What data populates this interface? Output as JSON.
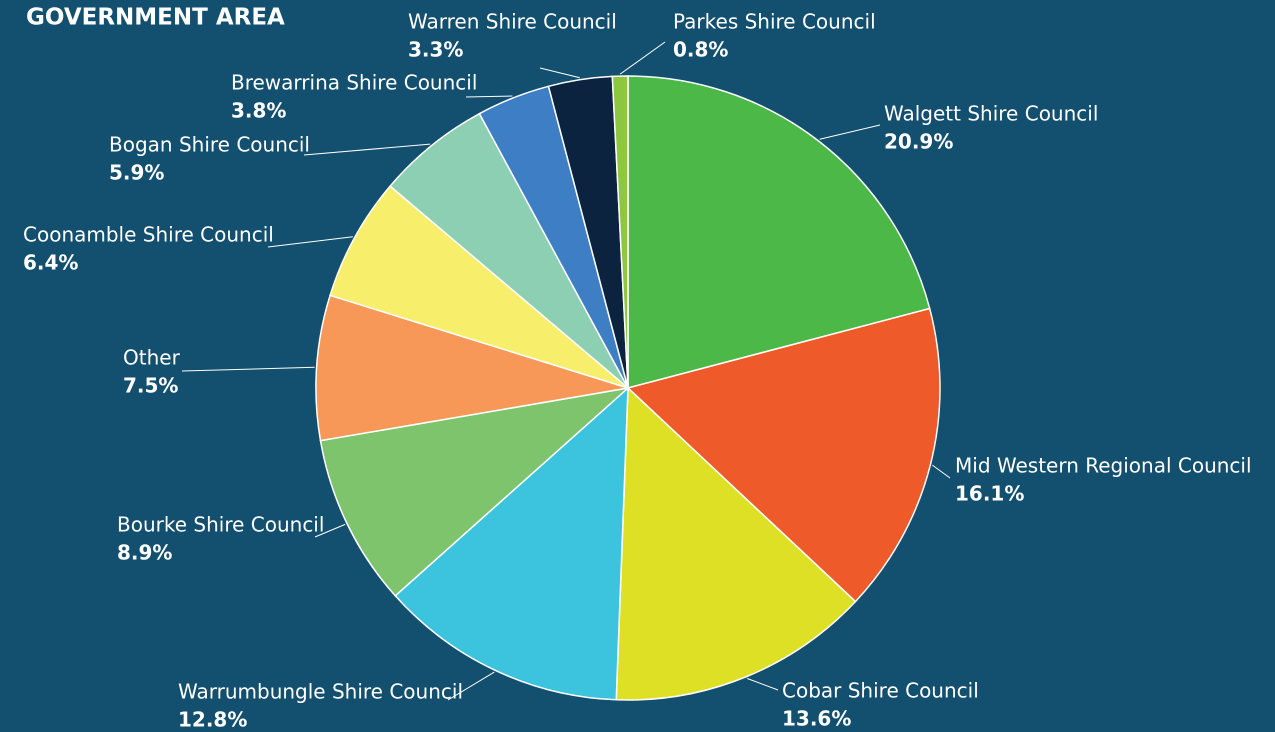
{
  "chart_data": {
    "type": "pie",
    "title": "GOVERNMENT AREA",
    "categories": [
      "Walgett Shire Council",
      "Mid Western Regional Council",
      "Cobar Shire Council",
      "Warrumbungle Shire Council",
      "Bourke Shire Council",
      "Other",
      "Coonamble Shire Council",
      "Bogan Shire Council",
      "Brewarrina Shire Council",
      "Warren Shire Council",
      "Parkes Shire Council"
    ],
    "values": [
      20.9,
      16.1,
      13.6,
      12.8,
      8.9,
      7.5,
      6.4,
      5.9,
      3.8,
      3.3,
      0.8
    ],
    "value_labels": [
      "20.9%",
      "16.1%",
      "13.6%",
      "12.8%",
      "8.9%",
      "7.5%",
      "6.4%",
      "5.9%",
      "3.8%",
      "3.3%",
      "0.8%"
    ],
    "colors": [
      "#4cb848",
      "#ee5a29",
      "#dde024",
      "#3cc3de",
      "#7dc46d",
      "#f79858",
      "#f7ee6b",
      "#8ccfb3",
      "#3d7ec4",
      "#0c2340",
      "#8dc63f"
    ]
  }
}
